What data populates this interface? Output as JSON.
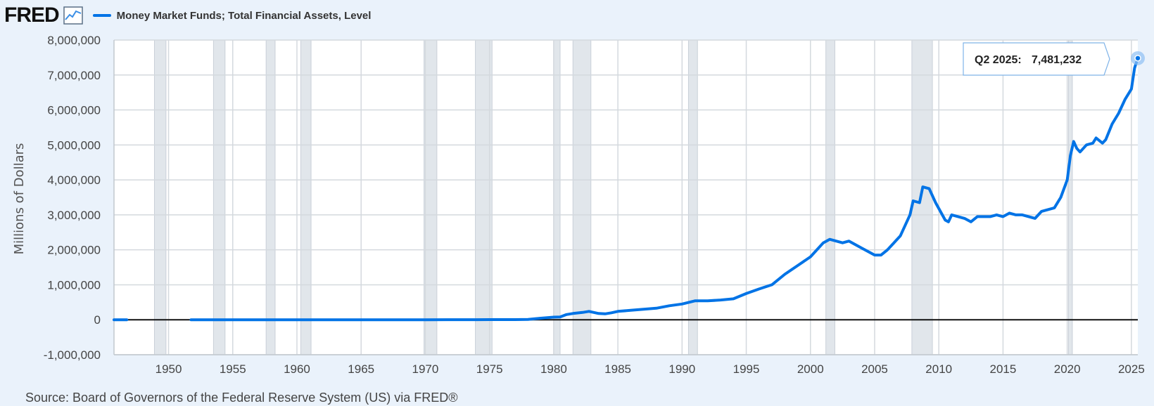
{
  "header": {
    "logo_text": "FRED",
    "logo_icon": "chart-line-icon",
    "legend_color": "#0073e6"
  },
  "source": "Source: Board of Governors of the Federal Reserve System (US) via FRED®",
  "tooltip": {
    "label": "Q2 2025:",
    "value": "7,481,232"
  },
  "chart_data": {
    "type": "line",
    "title": "",
    "ylabel": "Millions of Dollars",
    "xlabel": "",
    "xlim": [
      1945.75,
      2025.5
    ],
    "ylim": [
      -1000000,
      8000000
    ],
    "yticks": [
      -1000000,
      0,
      1000000,
      2000000,
      3000000,
      4000000,
      5000000,
      6000000,
      7000000,
      8000000
    ],
    "ytick_labels": [
      "-1,000,000",
      "0",
      "1,000,000",
      "2,000,000",
      "3,000,000",
      "4,000,000",
      "5,000,000",
      "6,000,000",
      "7,000,000",
      "8,000,000"
    ],
    "xticks": [
      1950,
      1955,
      1960,
      1965,
      1970,
      1975,
      1980,
      1985,
      1990,
      1995,
      2000,
      2005,
      2010,
      2015,
      2020,
      2025
    ],
    "xtick_labels": [
      "1950",
      "1955",
      "1960",
      "1965",
      "1970",
      "1975",
      "1980",
      "1985",
      "1990",
      "1995",
      "2000",
      "2005",
      "2010",
      "2015",
      "2020",
      "2025"
    ],
    "grid": true,
    "recessions": [
      [
        1948.9,
        1949.8
      ],
      [
        1953.5,
        1954.4
      ],
      [
        1957.6,
        1958.3
      ],
      [
        1960.3,
        1961.1
      ],
      [
        1969.9,
        1970.9
      ],
      [
        1973.9,
        1975.2
      ],
      [
        1980.0,
        1980.5
      ],
      [
        1981.5,
        1982.9
      ],
      [
        1990.5,
        1991.2
      ],
      [
        2001.2,
        2001.9
      ],
      [
        2007.9,
        2009.5
      ],
      [
        2020.1,
        2020.4
      ]
    ],
    "series": [
      {
        "name": "Money Market Funds; Total Financial Assets, Level",
        "color": "#0073e6",
        "segments": [
          [
            [
              1945.75,
              0
            ],
            [
              1946.75,
              0
            ]
          ],
          [
            [
              1951.75,
              0
            ],
            [
              1960,
              0
            ],
            [
              1970,
              0
            ],
            [
              1974,
              2000
            ],
            [
              1975,
              3600
            ],
            [
              1976,
              3700
            ],
            [
              1977,
              3900
            ],
            [
              1978,
              10000
            ],
            [
              1979,
              45000
            ],
            [
              1980,
              75000
            ],
            [
              1980.5,
              80000
            ],
            [
              1981,
              150000
            ],
            [
              1981.5,
              180000
            ],
            [
              1982.25,
              210000
            ],
            [
              1982.75,
              240000
            ],
            [
              1983.5,
              180000
            ],
            [
              1984,
              170000
            ],
            [
              1984.5,
              200000
            ],
            [
              1985,
              240000
            ],
            [
              1986,
              270000
            ],
            [
              1987,
              300000
            ],
            [
              1988,
              330000
            ],
            [
              1989,
              400000
            ],
            [
              1990,
              450000
            ],
            [
              1991,
              540000
            ],
            [
              1992,
              540000
            ],
            [
              1993,
              565000
            ],
            [
              1994,
              600000
            ],
            [
              1995,
              750000
            ],
            [
              1996,
              880000
            ],
            [
              1997,
              1000000
            ],
            [
              1998,
              1300000
            ],
            [
              1999,
              1550000
            ],
            [
              2000,
              1800000
            ],
            [
              2001,
              2200000
            ],
            [
              2001.5,
              2300000
            ],
            [
              2002,
              2250000
            ],
            [
              2002.5,
              2200000
            ],
            [
              2003,
              2250000
            ],
            [
              2004,
              2050000
            ],
            [
              2005,
              1850000
            ],
            [
              2005.5,
              1850000
            ],
            [
              2006,
              2000000
            ],
            [
              2007,
              2400000
            ],
            [
              2007.75,
              3000000
            ],
            [
              2008,
              3400000
            ],
            [
              2008.5,
              3350000
            ],
            [
              2008.75,
              3800000
            ],
            [
              2009.25,
              3750000
            ],
            [
              2009.75,
              3350000
            ],
            [
              2010.5,
              2850000
            ],
            [
              2010.75,
              2800000
            ],
            [
              2011,
              3000000
            ],
            [
              2012,
              2900000
            ],
            [
              2012.5,
              2800000
            ],
            [
              2013,
              2950000
            ],
            [
              2014,
              2950000
            ],
            [
              2014.5,
              3000000
            ],
            [
              2015,
              2950000
            ],
            [
              2015.5,
              3050000
            ],
            [
              2016,
              3000000
            ],
            [
              2016.5,
              3000000
            ],
            [
              2017,
              2950000
            ],
            [
              2017.5,
              2900000
            ],
            [
              2018,
              3100000
            ],
            [
              2019,
              3200000
            ],
            [
              2019.5,
              3500000
            ],
            [
              2020,
              4000000
            ],
            [
              2020.25,
              4700000
            ],
            [
              2020.5,
              5100000
            ],
            [
              2020.75,
              4900000
            ],
            [
              2021,
              4800000
            ],
            [
              2021.5,
              5000000
            ],
            [
              2022,
              5050000
            ],
            [
              2022.25,
              5200000
            ],
            [
              2022.75,
              5050000
            ],
            [
              2023,
              5150000
            ],
            [
              2023.5,
              5600000
            ],
            [
              2024,
              5900000
            ],
            [
              2024.5,
              6300000
            ],
            [
              2025,
              6600000
            ],
            [
              2025.25,
              7200000
            ],
            [
              2025.5,
              7481232
            ]
          ]
        ]
      }
    ]
  }
}
